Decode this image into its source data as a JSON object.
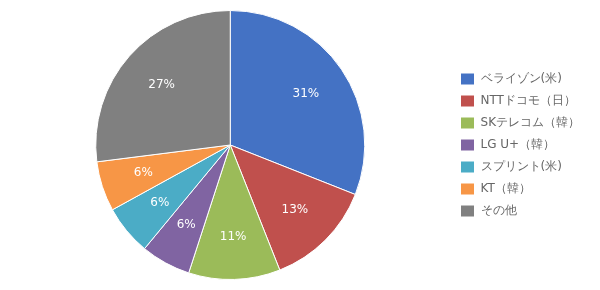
{
  "chart_data": {
    "type": "pie",
    "categories": [
      "ベライゾン(米)",
      "NTTドコモ（日）",
      "SKテレコム（韓）",
      "LG U+（韓）",
      "スプリント(米)",
      "KT（韓）",
      "その他"
    ],
    "values": [
      31,
      13,
      11,
      6,
      6,
      6,
      27
    ],
    "value_labels": [
      "31%",
      "13%",
      "11%",
      "6%",
      "6%",
      "6%",
      "27%"
    ],
    "colors": [
      "#4472C4",
      "#C0504D",
      "#9BBB59",
      "#8064A2",
      "#4BACC6",
      "#F79646",
      "#808080"
    ],
    "data_labels": true,
    "legend": "right"
  }
}
